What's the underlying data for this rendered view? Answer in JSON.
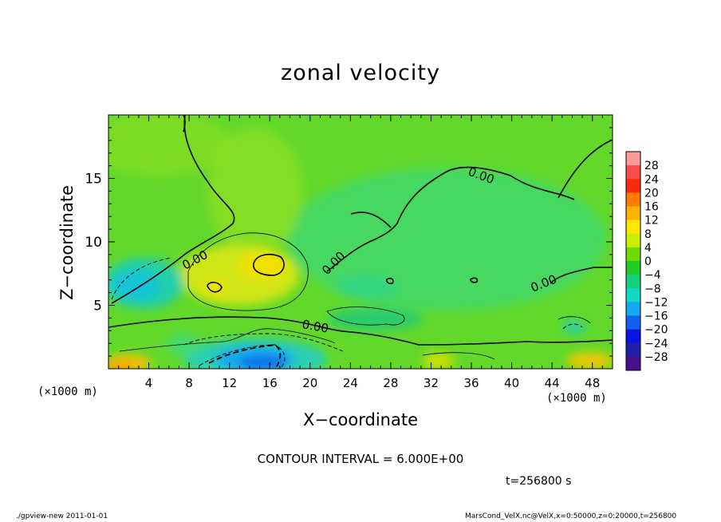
{
  "chart_data": {
    "type": "heatmap",
    "title": "zonal velocity",
    "xlabel": "X−coordinate",
    "ylabel": "Z−coordinate",
    "x_unit": "(×1000 m)",
    "x_range": [
      0,
      50
    ],
    "y_range": [
      0,
      20
    ],
    "x_ticks": [
      "4",
      "8",
      "12",
      "16",
      "20",
      "24",
      "28",
      "32",
      "36",
      "40",
      "44",
      "48"
    ],
    "x_tick_values": [
      4,
      8,
      12,
      16,
      20,
      24,
      28,
      32,
      36,
      40,
      44,
      48
    ],
    "y_ticks": [
      "5",
      "10",
      "15"
    ],
    "y_tick_values": [
      5,
      10,
      15
    ],
    "contour_label": "0.00",
    "contour_interval_text": "CONTOUR INTERVAL = 6.000E+00",
    "time_text": "t=256800 s",
    "colorbar": {
      "labels": [
        "28",
        "24",
        "20",
        "16",
        "12",
        "8",
        "4",
        "0",
        "−4",
        "−8",
        "−12",
        "−16",
        "−20",
        "−24",
        "−28"
      ],
      "colors": [
        "#fe9a9a",
        "#ff4d4d",
        "#ff2a10",
        "#ff7a00",
        "#ffb000",
        "#ffe600",
        "#c8f000",
        "#6cdc00",
        "#22cc22",
        "#12d07c",
        "#10d8c4",
        "#14a8f0",
        "#1060f0",
        "#0a14e6",
        "#2020a8",
        "#4a1090"
      ]
    }
  },
  "footer": {
    "left": "./gpview-new   2011-01-01",
    "right": "MarsCond_VelX.nc@VelX,x=0:50000,z=0:20000,t=256800"
  }
}
